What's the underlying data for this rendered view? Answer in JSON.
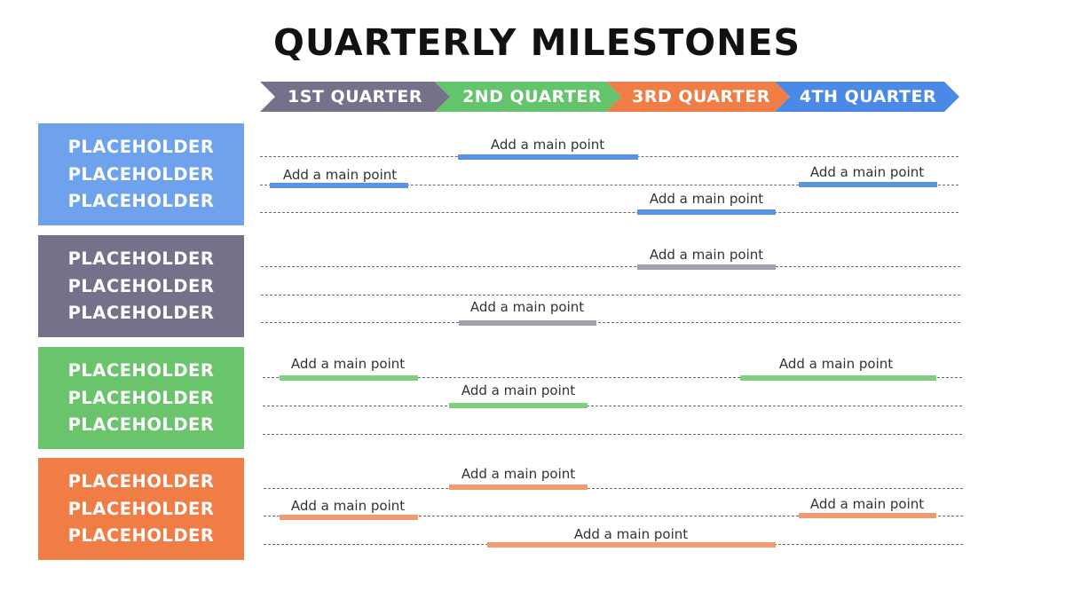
{
  "title": "QUARTERLY MILESTONES",
  "colors": {
    "blue": "#5b92e5",
    "gray": "#76708a",
    "green": "#6ac46c",
    "orange": "#ef7d45"
  },
  "quarters": [
    {
      "label": "1ST QUARTER",
      "color": "#4a8ae6"
    },
    {
      "label": "2ND QUARTER",
      "color": "#76708a"
    },
    {
      "label": "3RD QUARTER",
      "color": "#63c46b"
    },
    {
      "label": "4TH QUARTER",
      "color": "#ef7d45"
    }
  ],
  "categories": [
    {
      "lines": [
        "PLACEHOLDER",
        "PLACEHOLDER",
        "PLACEHOLDER"
      ],
      "box_color": "#6ea2ec",
      "bar_color": "#5b92e5"
    },
    {
      "lines": [
        "PLACEHOLDER",
        "PLACEHOLDER",
        "PLACEHOLDER"
      ],
      "box_color": "#76708a",
      "bar_color": "#a4a1ae"
    },
    {
      "lines": [
        "PLACEHOLDER",
        "PLACEHOLDER",
        "PLACEHOLDER"
      ],
      "box_color": "#69c46b",
      "bar_color": "#7fcf7e"
    },
    {
      "lines": [
        "PLACEHOLDER",
        "PLACEHOLDER",
        "PLACEHOLDER"
      ],
      "box_color": "#ef7d45",
      "bar_color": "#f29b73"
    }
  ],
  "milestones": [
    {
      "category": 0,
      "row": 0,
      "label": "Add a main point"
    },
    {
      "category": 0,
      "row": 1,
      "label": "Add a main point"
    },
    {
      "category": 0,
      "row": 1,
      "label": "Add a main point"
    },
    {
      "category": 0,
      "row": 2,
      "label": "Add a main point"
    },
    {
      "category": 1,
      "row": 0,
      "label": "Add a main point"
    },
    {
      "category": 1,
      "row": 2,
      "label": "Add a main point"
    },
    {
      "category": 2,
      "row": 0,
      "label": "Add a main point"
    },
    {
      "category": 2,
      "row": 0,
      "label": "Add a main point"
    },
    {
      "category": 2,
      "row": 1,
      "label": "Add a main point"
    },
    {
      "category": 3,
      "row": 0,
      "label": "Add a main point"
    },
    {
      "category": 3,
      "row": 1,
      "label": "Add a main point"
    },
    {
      "category": 3,
      "row": 1,
      "label": "Add a main point"
    },
    {
      "category": 3,
      "row": 2,
      "label": "Add a main point"
    }
  ]
}
